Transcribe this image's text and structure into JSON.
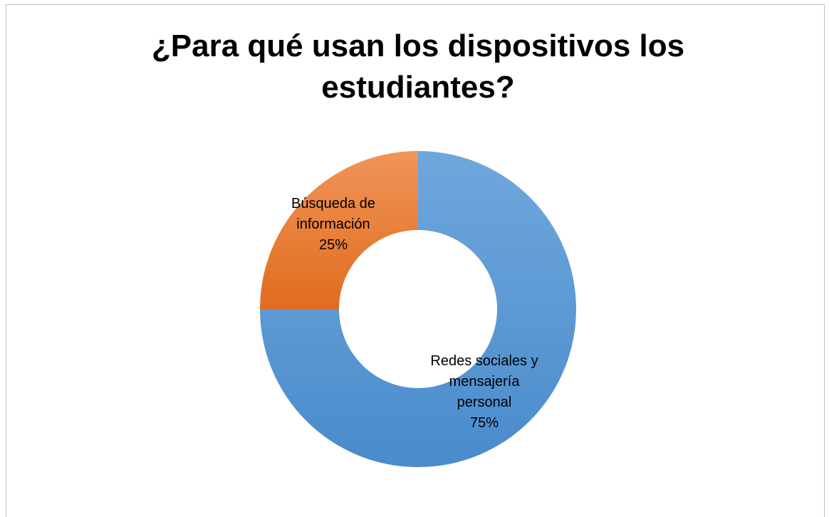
{
  "chart_data": {
    "type": "pie",
    "variant": "donut",
    "title": "¿Para qué usan los dispositivos los estudiantes?",
    "slices": [
      {
        "name": "Redes sociales y mensajería personal",
        "label_lines": [
          "Redes sociales y",
          "mensajería",
          "personal",
          "75%"
        ],
        "value": 75,
        "color": "#5B9BD5"
      },
      {
        "name": "Búsqueda de información",
        "label_lines": [
          "Búsqueda de",
          "información",
          "25%"
        ],
        "value": 25,
        "color": "#ED7D31"
      }
    ],
    "legend": "none",
    "start_angle_deg": 0,
    "direction": "clockwise"
  }
}
